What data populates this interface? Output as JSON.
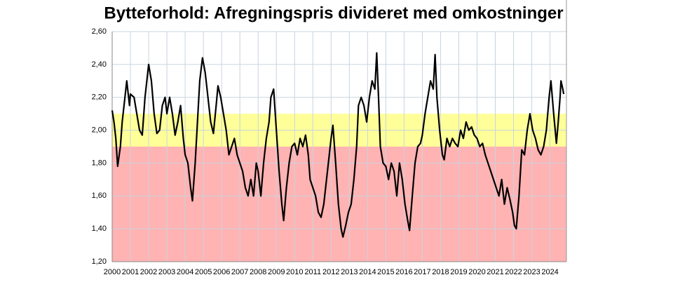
{
  "chart_data": {
    "type": "line",
    "title": "Bytteforhold: Afregningspris divideret med  omkostninger",
    "xlim": [
      2000,
      2024.9
    ],
    "xticks": [
      2000,
      2001,
      2002,
      2003,
      2004,
      2005,
      2006,
      2007,
      2008,
      2009,
      2010,
      2011,
      2012,
      2013,
      2014,
      2015,
      2016,
      2017,
      2018,
      2019,
      2020,
      2021,
      2022,
      2023,
      2024
    ],
    "ylim": [
      1.2,
      2.6
    ],
    "yticks": [
      {
        "value": 1.2,
        "label": "1,20"
      },
      {
        "value": 1.4,
        "label": "1,40"
      },
      {
        "value": 1.6,
        "label": "1,60"
      },
      {
        "value": 1.8,
        "label": "1,80"
      },
      {
        "value": 2.0,
        "label": "2,00"
      },
      {
        "value": 2.2,
        "label": "2,20"
      },
      {
        "value": 2.4,
        "label": "2,40"
      },
      {
        "value": 2.6,
        "label": "2,60"
      }
    ],
    "grid": true,
    "bands": [
      {
        "from": 1.9,
        "to": 2.1,
        "color": "#ffff99"
      },
      {
        "from": 1.2,
        "to": 1.9,
        "color": "#ffb3b3"
      }
    ],
    "color": "#000000",
    "x": [
      2000.0,
      2000.1,
      2000.2,
      2000.3,
      2000.45,
      2000.55,
      2000.7,
      2000.8,
      2000.95,
      2001.0,
      2001.2,
      2001.35,
      2001.5,
      2001.65,
      2001.8,
      2001.95,
      2002.0,
      2002.15,
      2002.3,
      2002.45,
      2002.6,
      2002.75,
      2002.9,
      2003.0,
      2003.15,
      2003.3,
      2003.45,
      2003.6,
      2003.75,
      2003.9,
      2004.0,
      2004.15,
      2004.3,
      2004.4,
      2004.55,
      2004.7,
      2004.8,
      2004.95,
      2005.1,
      2005.25,
      2005.4,
      2005.55,
      2005.7,
      2005.8,
      2005.95,
      2006.1,
      2006.25,
      2006.4,
      2006.55,
      2006.7,
      2006.85,
      2007.0,
      2007.15,
      2007.3,
      2007.45,
      2007.6,
      2007.75,
      2007.9,
      2008.0,
      2008.15,
      2008.3,
      2008.45,
      2008.6,
      2008.7,
      2008.85,
      2009.0,
      2009.15,
      2009.3,
      2009.4,
      2009.55,
      2009.7,
      2009.85,
      2010.0,
      2010.15,
      2010.3,
      2010.45,
      2010.6,
      2010.75,
      2010.85,
      2011.0,
      2011.15,
      2011.3,
      2011.45,
      2011.6,
      2011.75,
      2011.9,
      2012.0,
      2012.1,
      2012.25,
      2012.4,
      2012.55,
      2012.65,
      2012.8,
      2012.95,
      2013.1,
      2013.25,
      2013.4,
      2013.5,
      2013.65,
      2013.8,
      2013.95,
      2014.1,
      2014.25,
      2014.4,
      2014.5,
      2014.6,
      2014.7,
      2014.85,
      2015.0,
      2015.15,
      2015.3,
      2015.45,
      2015.6,
      2015.75,
      2015.9,
      2016.05,
      2016.2,
      2016.3,
      2016.45,
      2016.6,
      2016.75,
      2016.9,
      2017.0,
      2017.15,
      2017.3,
      2017.45,
      2017.6,
      2017.7,
      2017.8,
      2017.95,
      2018.1,
      2018.2,
      2018.35,
      2018.5,
      2018.65,
      2018.8,
      2018.95,
      2019.1,
      2019.25,
      2019.4,
      2019.55,
      2019.7,
      2019.85,
      2020.0,
      2020.15,
      2020.3,
      2020.45,
      2020.6,
      2020.75,
      2020.9,
      2021.05,
      2021.2,
      2021.35,
      2021.5,
      2021.65,
      2021.8,
      2021.95,
      2022.05,
      2022.15,
      2022.3,
      2022.45,
      2022.6,
      2022.75,
      2022.9,
      2023.05,
      2023.2,
      2023.35,
      2023.5,
      2023.65,
      2023.8,
      2023.95,
      2024.05,
      2024.2,
      2024.35,
      2024.45,
      2024.55,
      2024.6,
      2024.7,
      2024.75
    ],
    "values": [
      2.12,
      2.05,
      1.95,
      1.78,
      1.9,
      2.05,
      2.2,
      2.3,
      2.15,
      2.22,
      2.2,
      2.1,
      2.0,
      1.97,
      2.2,
      2.35,
      2.4,
      2.3,
      2.1,
      1.98,
      2.0,
      2.15,
      2.2,
      2.1,
      2.2,
      2.1,
      1.97,
      2.05,
      2.15,
      1.95,
      1.85,
      1.8,
      1.65,
      1.57,
      1.8,
      2.1,
      2.3,
      2.44,
      2.35,
      2.2,
      2.05,
      1.98,
      2.15,
      2.27,
      2.2,
      2.1,
      2.0,
      1.85,
      1.9,
      1.95,
      1.85,
      1.8,
      1.75,
      1.65,
      1.6,
      1.7,
      1.6,
      1.8,
      1.75,
      1.6,
      1.8,
      1.95,
      2.05,
      2.2,
      2.25,
      2.0,
      1.75,
      1.55,
      1.45,
      1.65,
      1.8,
      1.9,
      1.92,
      1.85,
      1.95,
      1.9,
      1.97,
      1.85,
      1.7,
      1.65,
      1.6,
      1.5,
      1.47,
      1.55,
      1.7,
      1.85,
      1.95,
      2.03,
      1.8,
      1.55,
      1.4,
      1.35,
      1.42,
      1.5,
      1.55,
      1.7,
      1.9,
      2.15,
      2.2,
      2.15,
      2.05,
      2.2,
      2.3,
      2.25,
      2.47,
      2.2,
      1.9,
      1.8,
      1.78,
      1.7,
      1.8,
      1.75,
      1.6,
      1.8,
      1.7,
      1.55,
      1.45,
      1.39,
      1.6,
      1.8,
      1.9,
      1.92,
      1.97,
      2.1,
      2.2,
      2.3,
      2.25,
      2.46,
      2.2,
      2.0,
      1.85,
      1.82,
      1.95,
      1.9,
      1.95,
      1.92,
      1.9,
      2.0,
      1.95,
      2.05,
      2.0,
      2.02,
      1.97,
      1.95,
      1.9,
      1.92,
      1.85,
      1.8,
      1.75,
      1.7,
      1.65,
      1.6,
      1.7,
      1.55,
      1.65,
      1.58,
      1.5,
      1.42,
      1.4,
      1.6,
      1.88,
      1.85,
      2.0,
      2.1,
      2.0,
      1.95,
      1.88,
      1.85,
      1.9,
      2.0,
      2.2,
      2.3,
      2.1,
      1.92,
      2.05,
      2.2,
      2.3,
      2.25,
      2.22
    ]
  }
}
